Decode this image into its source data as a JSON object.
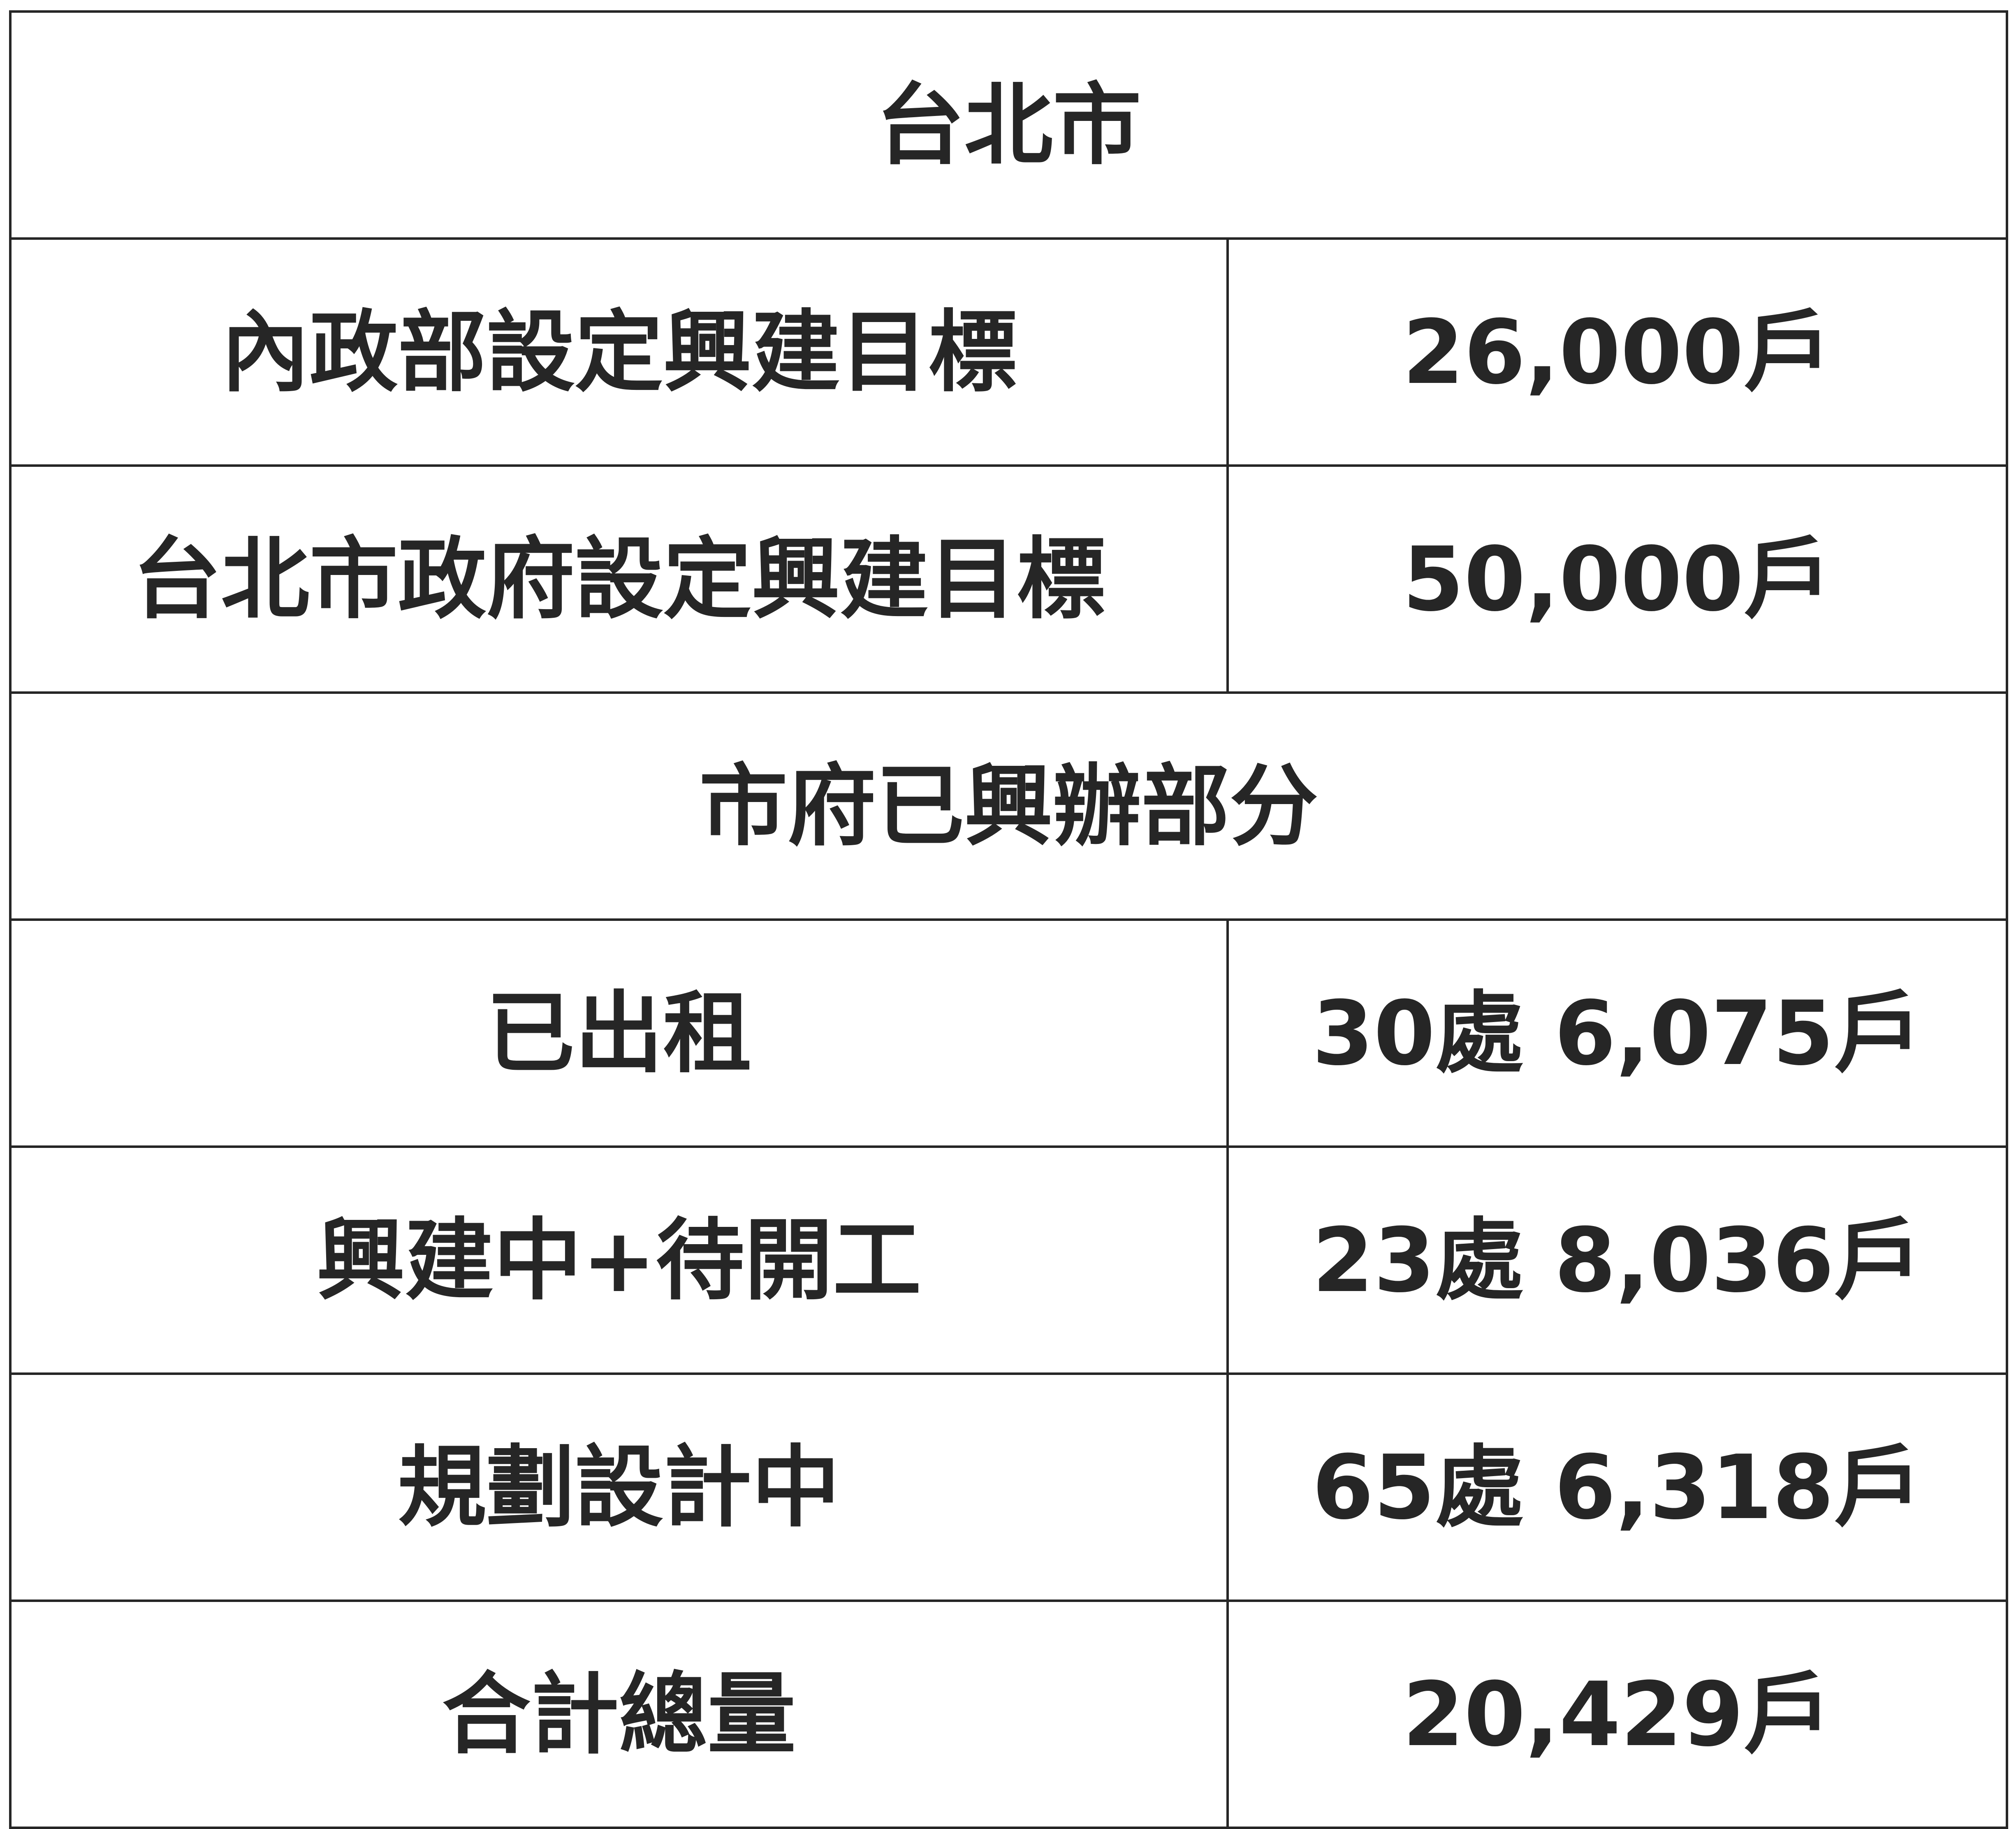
{
  "table": {
    "section1_header": "台北市",
    "section1_rows": [
      {
        "label": "內政部設定興建目標",
        "value": "26,000戶"
      },
      {
        "label": "台北市政府設定興建目標",
        "value": "50,000戶"
      }
    ],
    "section2_header": "市府已興辦部分",
    "section2_rows": [
      {
        "label": "已出租",
        "value": "30處 6,075戶"
      },
      {
        "label": "興建中+待開工",
        "value": "23處 8,036戶"
      },
      {
        "label": "規劃設計中",
        "value": "65處 6,318戶"
      },
      {
        "label": "合計總量",
        "value": "20,429戶"
      }
    ]
  }
}
